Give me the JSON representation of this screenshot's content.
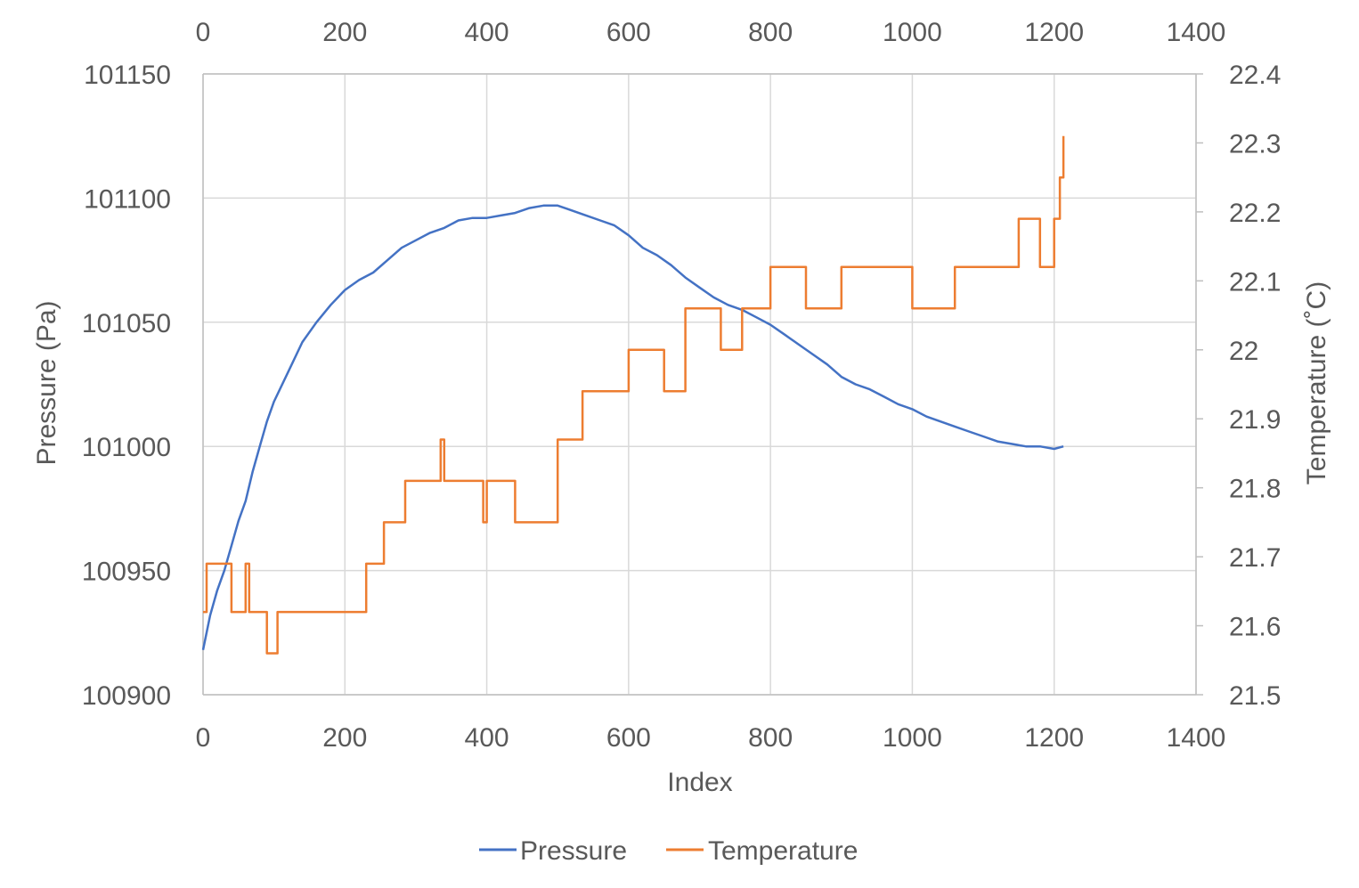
{
  "chart_data": {
    "type": "line",
    "x_axis": {
      "label": "Index",
      "range": [
        0,
        1400
      ],
      "ticks": [
        0,
        200,
        400,
        600,
        800,
        1000,
        1200,
        1400
      ],
      "secondary_ticks": [
        0,
        200,
        400,
        600,
        800,
        1000,
        1200,
        1400
      ]
    },
    "y_axis_left": {
      "label": "Pressure (Pa)",
      "range": [
        100900,
        101150
      ],
      "ticks": [
        100900,
        100950,
        101000,
        101050,
        101100,
        101150
      ]
    },
    "y_axis_right": {
      "label": "Temperature (˚C)",
      "range": [
        21.5,
        22.4
      ],
      "ticks": [
        21.5,
        21.6,
        21.7,
        21.8,
        21.9,
        22,
        22.1,
        22.2,
        22.3,
        22.4
      ]
    },
    "grid": true,
    "legend_position": "bottom",
    "series": [
      {
        "name": "Pressure",
        "axis": "left",
        "color": "#4472c4",
        "x": [
          0,
          10,
          20,
          30,
          40,
          50,
          60,
          70,
          80,
          90,
          100,
          120,
          140,
          160,
          180,
          200,
          220,
          240,
          260,
          280,
          300,
          320,
          340,
          360,
          380,
          400,
          420,
          440,
          460,
          480,
          500,
          520,
          540,
          560,
          580,
          600,
          620,
          640,
          660,
          680,
          700,
          720,
          740,
          760,
          780,
          800,
          820,
          840,
          860,
          880,
          900,
          920,
          940,
          960,
          980,
          1000,
          1020,
          1040,
          1060,
          1080,
          1100,
          1120,
          1140,
          1160,
          1180,
          1200,
          1213
        ],
        "y": [
          100918,
          100932,
          100942,
          100950,
          100960,
          100970,
          100978,
          100990,
          101000,
          101010,
          101018,
          101030,
          101042,
          101050,
          101057,
          101063,
          101067,
          101070,
          101075,
          101080,
          101083,
          101086,
          101088,
          101091,
          101092,
          101092,
          101093,
          101094,
          101096,
          101097,
          101097,
          101095,
          101093,
          101091,
          101089,
          101085,
          101080,
          101077,
          101073,
          101068,
          101064,
          101060,
          101057,
          101055,
          101052,
          101049,
          101045,
          101041,
          101037,
          101033,
          101028,
          101025,
          101023,
          101020,
          101017,
          101015,
          101012,
          101010,
          101008,
          101006,
          101004,
          101002,
          101001,
          101000,
          101000,
          100999,
          101000
        ]
      },
      {
        "name": "Temperature",
        "axis": "right",
        "color": "#ed7d31",
        "x": [
          0,
          5,
          40,
          60,
          65,
          90,
          105,
          230,
          255,
          285,
          335,
          340,
          395,
          400,
          440,
          500,
          535,
          600,
          650,
          680,
          730,
          760,
          800,
          850,
          900,
          1000,
          1060,
          1150,
          1180,
          1200,
          1208,
          1213
        ],
        "y": [
          21.62,
          21.69,
          21.62,
          21.69,
          21.62,
          21.56,
          21.62,
          21.69,
          21.75,
          21.81,
          21.87,
          21.81,
          21.75,
          21.81,
          21.75,
          21.87,
          21.94,
          22.0,
          21.94,
          22.06,
          22.0,
          22.06,
          22.12,
          22.06,
          22.12,
          22.06,
          22.12,
          22.19,
          22.12,
          22.19,
          22.25,
          22.31
        ]
      }
    ]
  }
}
